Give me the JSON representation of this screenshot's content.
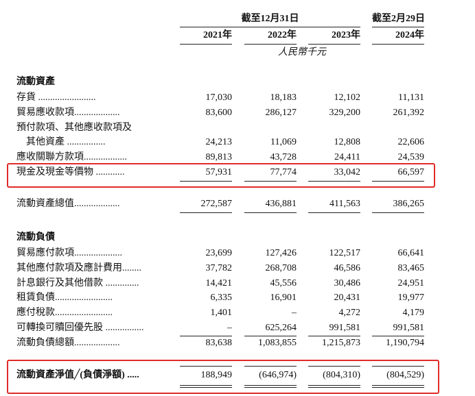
{
  "header": {
    "period_group": "截至12月31日",
    "period_single": "截至2月29日",
    "years": [
      "2021年",
      "2022年",
      "2023年",
      "2024年"
    ],
    "unit": "人民幣千元"
  },
  "current_assets": {
    "title": "流動資產",
    "rows": [
      {
        "label": [
          "存貨 ........................"
        ],
        "values": [
          "17,030",
          "18,183",
          "12,102",
          "11,131"
        ]
      },
      {
        "label": [
          "貿易應收款項..................."
        ],
        "values": [
          "83,600",
          "286,127",
          "329,200",
          "261,392"
        ]
      },
      {
        "label": [
          "預付款項、其他應收款項及",
          "其他資產 ................"
        ],
        "values": [
          "24,213",
          "11,069",
          "12,808",
          "22,606"
        ]
      },
      {
        "label": [
          "應收關聯方款項.................."
        ],
        "values": [
          "89,813",
          "43,728",
          "24,411",
          "24,539"
        ]
      },
      {
        "label": [
          "現金及現金等價物 ............"
        ],
        "values": [
          "57,931",
          "77,774",
          "33,042",
          "66,597"
        ]
      }
    ],
    "total": {
      "label": "流動資產總值...................",
      "values": [
        "272,587",
        "436,881",
        "411,563",
        "386,265"
      ]
    }
  },
  "current_liabilities": {
    "title": "流動負債",
    "rows": [
      {
        "label": [
          "貿易應付款項...................."
        ],
        "values": [
          "23,699",
          "127,426",
          "122,517",
          "66,641"
        ]
      },
      {
        "label": [
          "其他應付款項及應計費用........"
        ],
        "values": [
          "37,782",
          "268,708",
          "46,586",
          "83,465"
        ]
      },
      {
        "label": [
          "計息銀行及其他借款 .............."
        ],
        "values": [
          "14,421",
          "45,556",
          "30,486",
          "24,951"
        ]
      },
      {
        "label": [
          "租賃負債........................"
        ],
        "values": [
          "6,335",
          "16,901",
          "20,431",
          "19,977"
        ]
      },
      {
        "label": [
          "應付稅款........................"
        ],
        "values": [
          "1,401",
          "–",
          "4,272",
          "4,179"
        ]
      },
      {
        "label": [
          "可轉換可贖回優先股 ................"
        ],
        "values": [
          "–",
          "625,264",
          "991,581",
          "991,581"
        ]
      }
    ],
    "total": {
      "label": "流動負債總額...................",
      "values": [
        "83,638",
        "1,083,855",
        "1,215,873",
        "1,190,794"
      ]
    }
  },
  "net": {
    "label": "流動資產淨值╱(負債淨額) .....",
    "values": [
      "188,949",
      "(646,974)",
      "(804,310)",
      "(804,529)"
    ]
  }
}
